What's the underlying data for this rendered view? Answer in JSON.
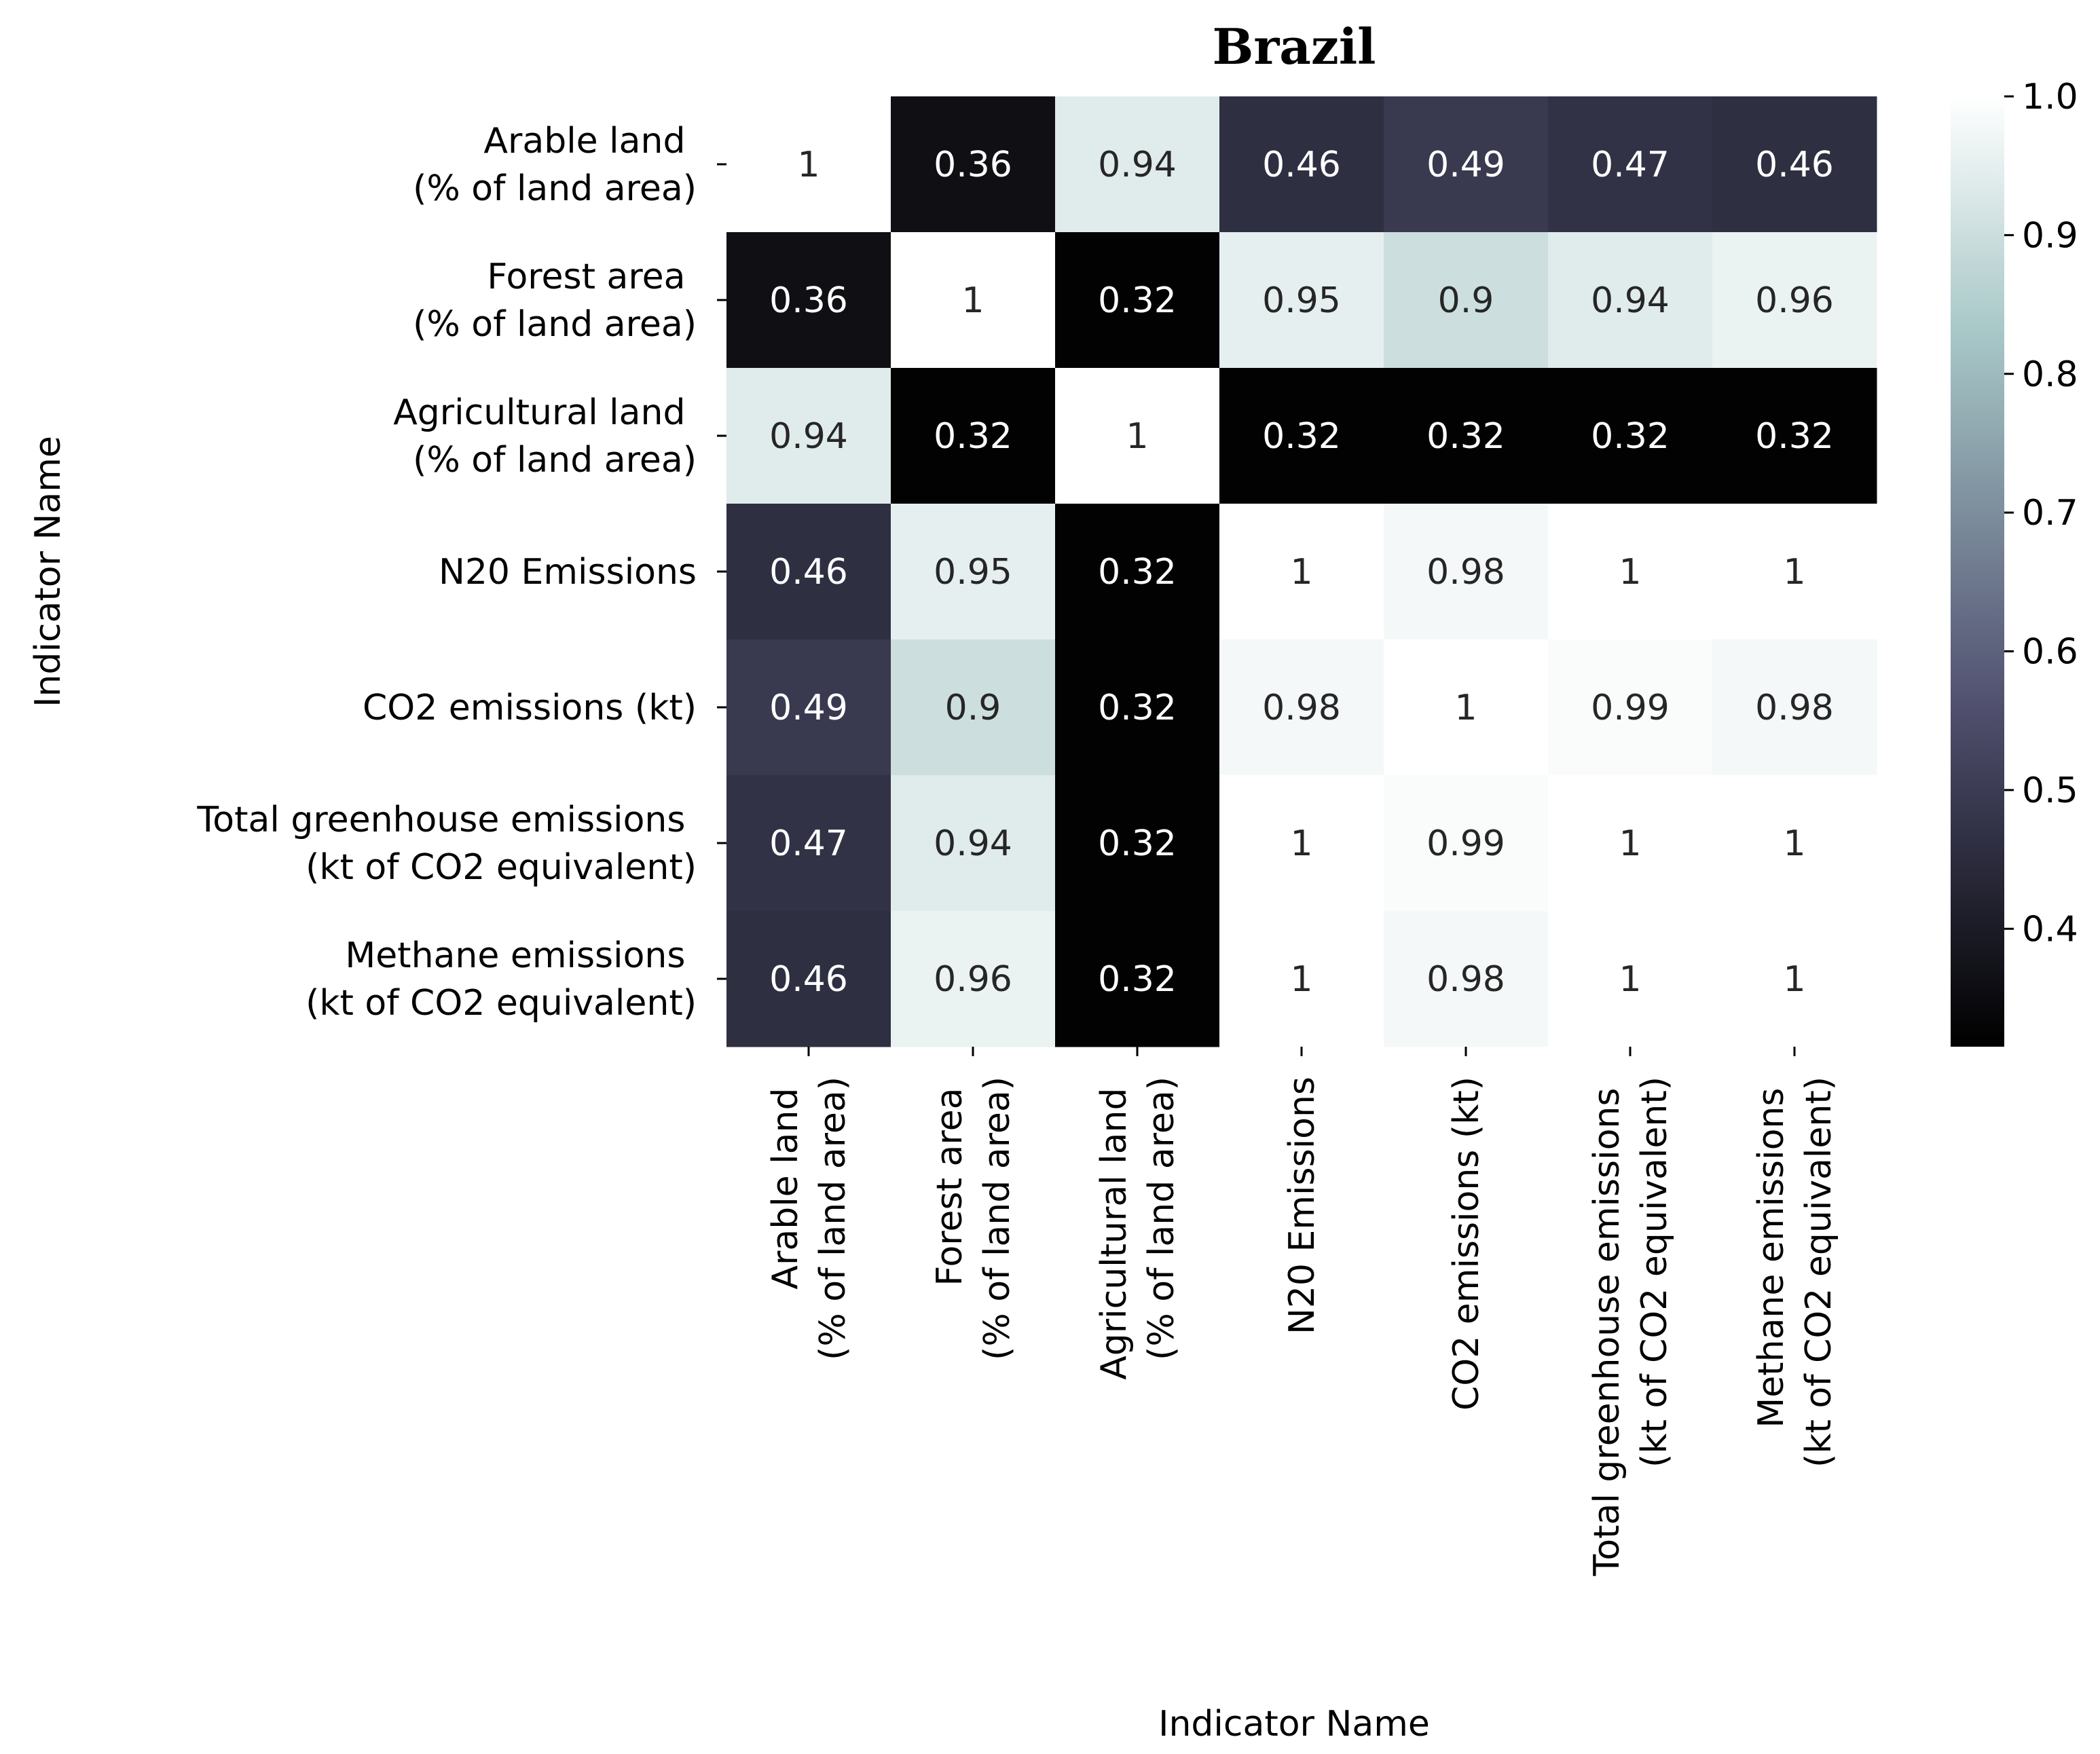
{
  "chart_data": {
    "type": "heatmap",
    "title": "Brazil",
    "xlabel": "Indicator Name",
    "ylabel": "Indicator Name",
    "row_labels": [
      [
        "Arable land ",
        "(% of land area)"
      ],
      [
        "Forest area ",
        "(% of land area)"
      ],
      [
        "Agricultural land ",
        "(% of land area)"
      ],
      [
        "N20 Emissions"
      ],
      [
        "CO2 emissions (kt)"
      ],
      [
        "Total greenhouse emissions ",
        "(kt of CO2 equivalent)"
      ],
      [
        "Methane emissions ",
        "(kt of CO2 equivalent)"
      ]
    ],
    "col_labels": [
      [
        "Arable land ",
        "(% of land area)"
      ],
      [
        "Forest area ",
        "(% of land area)"
      ],
      [
        "Agricultural land ",
        "(% of land area)"
      ],
      [
        "N20 Emissions"
      ],
      [
        "CO2 emissions (kt)"
      ],
      [
        "Total greenhouse emissions ",
        "(kt of CO2 equivalent)"
      ],
      [
        "Methane emissions ",
        "(kt of CO2 equivalent)"
      ]
    ],
    "values": [
      [
        1,
        0.36,
        0.94,
        0.46,
        0.49,
        0.47,
        0.46
      ],
      [
        0.36,
        1,
        0.32,
        0.95,
        0.9,
        0.94,
        0.96
      ],
      [
        0.94,
        0.32,
        1,
        0.32,
        0.32,
        0.32,
        0.32
      ],
      [
        0.46,
        0.95,
        0.32,
        1,
        0.98,
        1,
        1
      ],
      [
        0.49,
        0.9,
        0.32,
        0.98,
        1,
        0.99,
        0.98
      ],
      [
        0.47,
        0.94,
        0.32,
        1,
        0.99,
        1,
        1
      ],
      [
        0.46,
        0.96,
        0.32,
        1,
        0.98,
        1,
        1
      ]
    ],
    "value_labels": [
      [
        "1",
        "0.36",
        "0.94",
        "0.46",
        "0.49",
        "0.47",
        "0.46"
      ],
      [
        "0.36",
        "1",
        "0.32",
        "0.95",
        "0.9",
        "0.94",
        "0.96"
      ],
      [
        "0.94",
        "0.32",
        "1",
        "0.32",
        "0.32",
        "0.32",
        "0.32"
      ],
      [
        "0.46",
        "0.95",
        "0.32",
        "1",
        "0.98",
        "1",
        "1"
      ],
      [
        "0.49",
        "0.9",
        "0.32",
        "0.98",
        "1",
        "0.99",
        "0.98"
      ],
      [
        "0.47",
        "0.94",
        "0.32",
        "1",
        "0.99",
        "1",
        "1"
      ],
      [
        "0.46",
        "0.96",
        "0.32",
        "1",
        "0.98",
        "1",
        "1"
      ]
    ],
    "colorbar": {
      "range": [
        0.315,
        1.0
      ],
      "ticks": [
        0.4,
        0.5,
        0.6,
        0.7,
        0.8,
        0.9,
        1.0
      ],
      "tick_labels": [
        "0.4",
        "0.5",
        "0.6",
        "0.7",
        "0.8",
        "0.9",
        "1.0"
      ],
      "colormap": "bone"
    }
  }
}
